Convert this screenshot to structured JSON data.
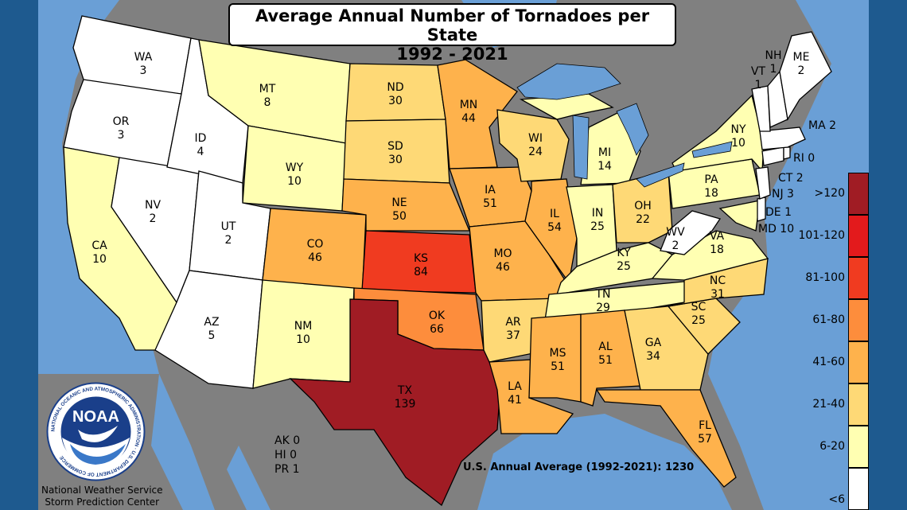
{
  "title_line1": "Average Annual Number of Tornadoes per State",
  "title_line2": "1992 - 2021",
  "colors": {
    "ocean": "#6a9fd6",
    "land_outside": "#808080",
    "lakes": "#6a9fd6",
    "side_panel": "#1e5a8f",
    "bin_lt6": "#ffffff",
    "bin_6_20": "#ffffb2",
    "bin_21_40": "#fed976",
    "bin_41_60": "#feb24c",
    "bin_61_80": "#fd8d3c",
    "bin_81_100": "#f03b20",
    "bin_101_120": "#e31a1c",
    "bin_gt120": "#a01c24"
  },
  "legend": [
    ">120",
    "101-120",
    "81-100",
    "61-80",
    "41-60",
    "21-40",
    "6-20",
    "<6"
  ],
  "states": [
    {
      "abbr": "WA",
      "value": "3"
    },
    {
      "abbr": "OR",
      "value": "3"
    },
    {
      "abbr": "ID",
      "value": "4"
    },
    {
      "abbr": "MT",
      "value": "8"
    },
    {
      "abbr": "ND",
      "value": "30"
    },
    {
      "abbr": "MN",
      "value": "44"
    },
    {
      "abbr": "WI",
      "value": "24"
    },
    {
      "abbr": "MI",
      "value": "14"
    },
    {
      "abbr": "NY",
      "value": "10"
    },
    {
      "abbr": "SD",
      "value": "30"
    },
    {
      "abbr": "WY",
      "value": "10"
    },
    {
      "abbr": "NV",
      "value": "2"
    },
    {
      "abbr": "UT",
      "value": "2"
    },
    {
      "abbr": "CA",
      "value": "10"
    },
    {
      "abbr": "CO",
      "value": "46"
    },
    {
      "abbr": "NE",
      "value": "50"
    },
    {
      "abbr": "IA",
      "value": "51"
    },
    {
      "abbr": "IL",
      "value": "54"
    },
    {
      "abbr": "IN",
      "value": "25"
    },
    {
      "abbr": "OH",
      "value": "22"
    },
    {
      "abbr": "PA",
      "value": "18"
    },
    {
      "abbr": "KS",
      "value": "84"
    },
    {
      "abbr": "MO",
      "value": "46"
    },
    {
      "abbr": "KY",
      "value": "25"
    },
    {
      "abbr": "WV",
      "value": "2"
    },
    {
      "abbr": "VA",
      "value": "18"
    },
    {
      "abbr": "AZ",
      "value": "5"
    },
    {
      "abbr": "NM",
      "value": "10"
    },
    {
      "abbr": "OK",
      "value": "66"
    },
    {
      "abbr": "AR",
      "value": "37"
    },
    {
      "abbr": "TN",
      "value": "29"
    },
    {
      "abbr": "NC",
      "value": "31"
    },
    {
      "abbr": "SC",
      "value": "25"
    },
    {
      "abbr": "GA",
      "value": "34"
    },
    {
      "abbr": "AL",
      "value": "51"
    },
    {
      "abbr": "MS",
      "value": "51"
    },
    {
      "abbr": "LA",
      "value": "41"
    },
    {
      "abbr": "TX",
      "value": "139"
    },
    {
      "abbr": "FL",
      "value": "57"
    },
    {
      "abbr": "NH",
      "value": "1"
    },
    {
      "abbr": "VT",
      "value": "1"
    },
    {
      "abbr": "ME",
      "value": "2"
    }
  ],
  "small_states": {
    "ma": "MA 2",
    "ri": "RI 0",
    "ct": "CT 2",
    "nj": "NJ 3",
    "de": "DE 1",
    "md": "MD 10"
  },
  "territories": [
    "AK 0",
    "HI 0",
    "PR 1"
  ],
  "us_average": "U.S. Annual Average (1992-2021): 1230",
  "credit_line1": "National Weather Service",
  "credit_line2": "Storm Prediction Center",
  "logo_text": "NOAA",
  "logo_ring_text": "NATIONAL OCEANIC AND ATMOSPHERIC ADMINISTRATION · U.S. DEPARTMENT OF COMMERCE"
}
